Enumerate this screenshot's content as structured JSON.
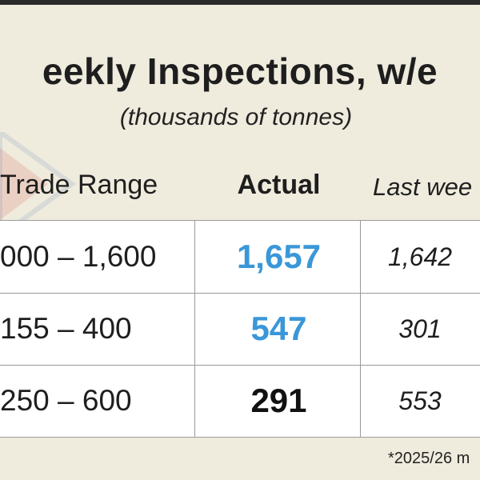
{
  "header": {
    "title": "eekly Inspections, w/e",
    "subtitle": "(thousands of tonnes)"
  },
  "table": {
    "columns": [
      "Trade Range",
      "Actual",
      "Last wee"
    ],
    "rows": [
      {
        "range": "000 – 1,600",
        "actual": "1,657",
        "actual_color": "#3a97d8",
        "last_week": "1,642"
      },
      {
        "range": "155 – 400",
        "actual": "547",
        "actual_color": "#3a97d8",
        "last_week": "301"
      },
      {
        "range": "250 – 600",
        "actual": "291",
        "actual_color": "#111111",
        "last_week": "553"
      }
    ]
  },
  "footnote": "*2025/26 m"
}
